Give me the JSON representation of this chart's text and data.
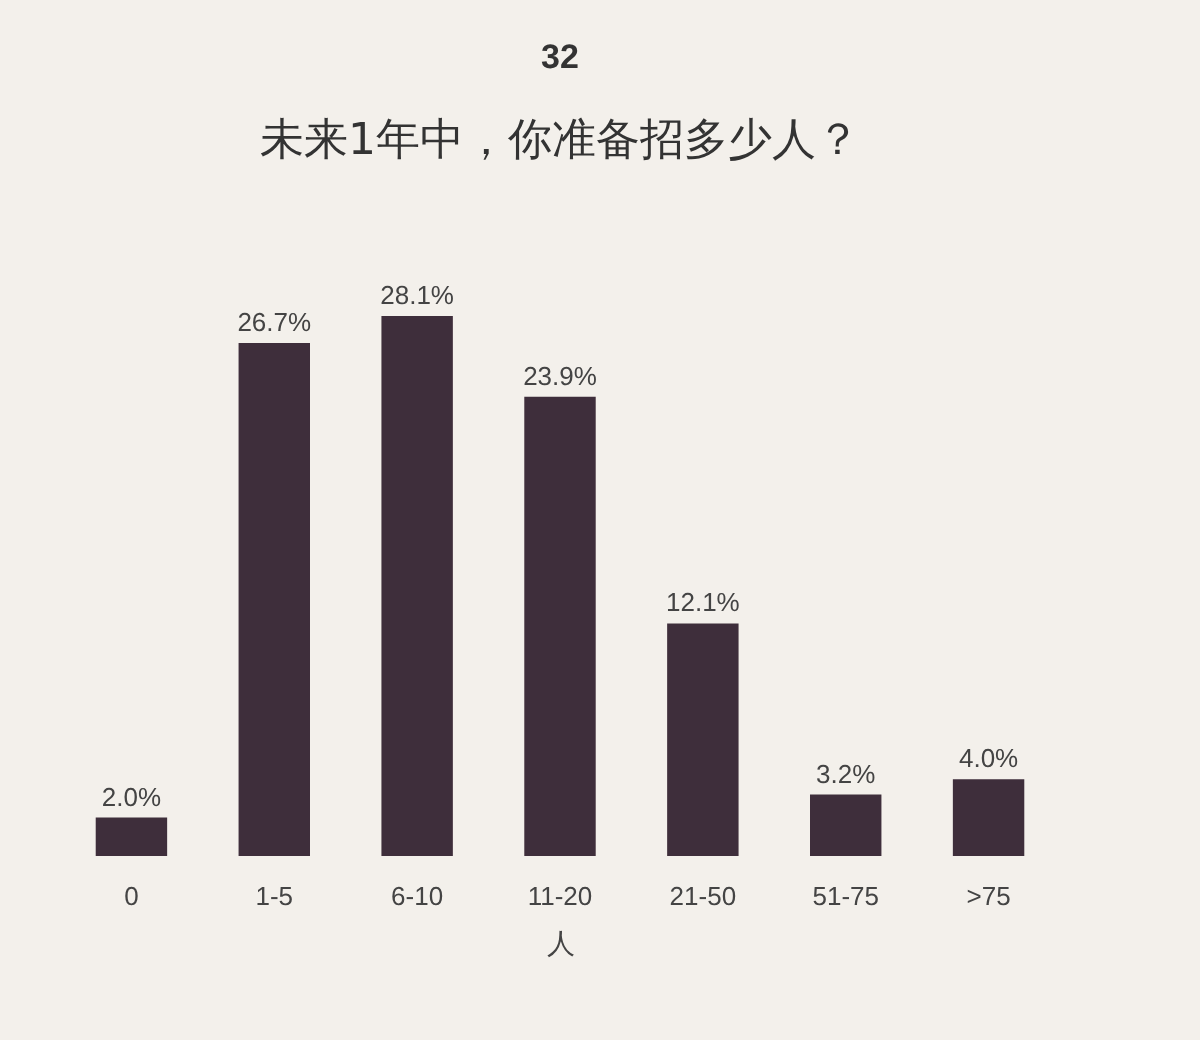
{
  "chart_data": {
    "type": "bar",
    "title": "32",
    "subtitle": "未来1年中，你准备招多少人？",
    "xlabel": "人",
    "categories": [
      "0",
      "1-5",
      "6-10",
      "11-20",
      "21-50",
      "51-75",
      ">75"
    ],
    "values": [
      2.0,
      26.7,
      28.1,
      23.9,
      12.1,
      3.2,
      4.0
    ],
    "value_labels": [
      "2.0%",
      "26.7%",
      "28.1%",
      "23.9%",
      "12.1%",
      "3.2%",
      "4.0%"
    ],
    "color": "#3e2e3b",
    "grid": false
  }
}
